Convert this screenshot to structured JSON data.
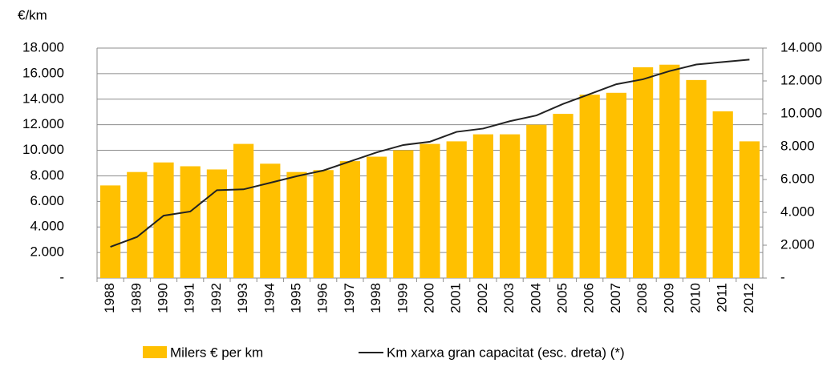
{
  "chart_data": {
    "type": "bar_line",
    "y_label": "€/km",
    "categories": [
      "1988",
      "1989",
      "1990",
      "1991",
      "1992",
      "1993",
      "1994",
      "1995",
      "1996",
      "1997",
      "1998",
      "1999",
      "2000",
      "2001",
      "2002",
      "2003",
      "2004",
      "2005",
      "2006",
      "2007",
      "2008",
      "2009",
      "2010",
      "2011",
      "2012"
    ],
    "series": [
      {
        "name": "Milers € per km",
        "type": "bar",
        "color": "#ffc000",
        "values": [
          7250,
          8300,
          9050,
          8750,
          8500,
          10500,
          8950,
          8300,
          8450,
          9150,
          9500,
          10000,
          10500,
          10700,
          11250,
          11250,
          12000,
          12850,
          14350,
          14500,
          16500,
          16700,
          15500,
          13050,
          10700
        ]
      },
      {
        "name": "Km xarxa gran capacitat (esc. dreta) (*)",
        "type": "line",
        "axis": "y2",
        "color": "#222222",
        "values": [
          1900,
          2500,
          3800,
          4050,
          5350,
          5400,
          5800,
          6200,
          6550,
          7100,
          7650,
          8100,
          8300,
          8900,
          9100,
          9550,
          9900,
          10600,
          11200,
          11800,
          12100,
          12600,
          13000,
          13150,
          13300
        ]
      }
    ],
    "ylim": [
      0,
      18000
    ],
    "yticks": [
      {
        "value": 0,
        "label": "-"
      },
      {
        "value": 2000,
        "label": "2.000"
      },
      {
        "value": 4000,
        "label": "4.000"
      },
      {
        "value": 6000,
        "label": "6.000"
      },
      {
        "value": 8000,
        "label": "8.000"
      },
      {
        "value": 10000,
        "label": "10.000"
      },
      {
        "value": 12000,
        "label": "12.000"
      },
      {
        "value": 14000,
        "label": "14.000"
      },
      {
        "value": 16000,
        "label": "16.000"
      },
      {
        "value": 18000,
        "label": "18.000"
      }
    ],
    "y2lim": [
      0,
      14000
    ],
    "y2ticks": [
      {
        "value": 0,
        "label": "-"
      },
      {
        "value": 2000,
        "label": "2.000"
      },
      {
        "value": 4000,
        "label": "4.000"
      },
      {
        "value": 6000,
        "label": "6.000"
      },
      {
        "value": 8000,
        "label": "8.000"
      },
      {
        "value": 10000,
        "label": "10.000"
      },
      {
        "value": 12000,
        "label": "12.000"
      },
      {
        "value": 14000,
        "label": "14.000"
      }
    ],
    "grid": true
  }
}
